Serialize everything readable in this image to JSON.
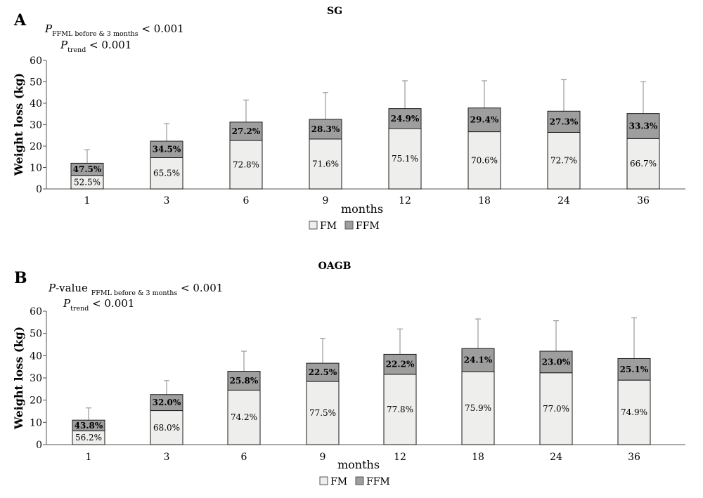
{
  "chart_data": [
    {
      "type": "bar",
      "stacked": true,
      "panel_letter": "A",
      "title": "SG",
      "annotations": {
        "line1": {
          "p": "P",
          "sub": "FFML before & 3 months",
          "rest": " < 0.001"
        },
        "line2": {
          "p": "P",
          "sub": "trend",
          "rest": " < 0.001"
        }
      },
      "xlabel": "months",
      "ylabel": "Weight loss (kg)",
      "ylim": [
        0,
        60
      ],
      "yticks": [
        0,
        10,
        20,
        30,
        40,
        50,
        60
      ],
      "categories": [
        "1",
        "3",
        "6",
        "9",
        "12",
        "18",
        "24",
        "36"
      ],
      "series": [
        {
          "name": "FM",
          "color": "#eeeeec",
          "values": [
            6.3,
            14.6,
            22.7,
            23.3,
            28.2,
            26.7,
            26.4,
            23.5
          ]
        },
        {
          "name": "FFM",
          "color": "#9e9e9e",
          "values": [
            5.7,
            7.7,
            8.5,
            9.2,
            9.3,
            11.1,
            9.9,
            11.7
          ]
        }
      ],
      "error_bar_top": [
        18.3,
        30.5,
        41.5,
        45.0,
        50.5,
        50.5,
        51.0,
        50.0
      ],
      "segment_labels": {
        "FM": [
          "52.5%",
          "65.5%",
          "72.8%",
          "71.6%",
          "75.1%",
          "70.6%",
          "72.7%",
          "66.7%"
        ],
        "FFM": [
          "47.5%",
          "34.5%",
          "27.2%",
          "28.3%",
          "24.9%",
          "29.4%",
          "27.3%",
          "33.3%"
        ]
      },
      "legend": {
        "position": "bottom",
        "items": [
          {
            "label": "FM",
            "color": "#eeeeec"
          },
          {
            "label": "FFM",
            "color": "#9e9e9e"
          }
        ]
      },
      "grid": false
    },
    {
      "type": "bar",
      "stacked": true,
      "panel_letter": "B",
      "title": "OAGB",
      "annotations": {
        "line1": {
          "p": "P",
          "pre_rest": "-value ",
          "sub": "FFML before & 3 months",
          "rest": " < 0.001"
        },
        "line2": {
          "p": "P",
          "sub": "trend",
          "rest": " < 0.001"
        }
      },
      "xlabel": "months",
      "ylabel": "Weight loss (kg)",
      "ylim": [
        0,
        60
      ],
      "yticks": [
        0,
        10,
        20,
        30,
        40,
        50,
        60
      ],
      "categories": [
        "1",
        "3",
        "6",
        "9",
        "12",
        "18",
        "24",
        "36"
      ],
      "series": [
        {
          "name": "FM",
          "color": "#eeeeec",
          "values": [
            6.2,
            15.3,
            24.5,
            28.4,
            31.6,
            32.8,
            32.3,
            29.0
          ]
        },
        {
          "name": "FFM",
          "color": "#9e9e9e",
          "values": [
            4.8,
            7.2,
            8.5,
            8.2,
            9.0,
            10.4,
            9.7,
            9.7
          ]
        }
      ],
      "error_bar_top": [
        16.5,
        28.8,
        42.0,
        47.8,
        52.0,
        56.5,
        55.7,
        57.0
      ],
      "segment_labels": {
        "FM": [
          "56.2%",
          "68.0%",
          "74.2%",
          "77.5%",
          "77.8%",
          "75.9%",
          "77.0%",
          "74.9%"
        ],
        "FFM": [
          "43.8%",
          "32.0%",
          "25.8%",
          "22.5%",
          "22.2%",
          "24.1%",
          "23.0%",
          "25.1%"
        ]
      },
      "legend": {
        "position": "bottom",
        "items": [
          {
            "label": "FM",
            "color": "#eeeeec"
          },
          {
            "label": "FFM",
            "color": "#9e9e9e"
          }
        ]
      },
      "grid": false
    }
  ]
}
